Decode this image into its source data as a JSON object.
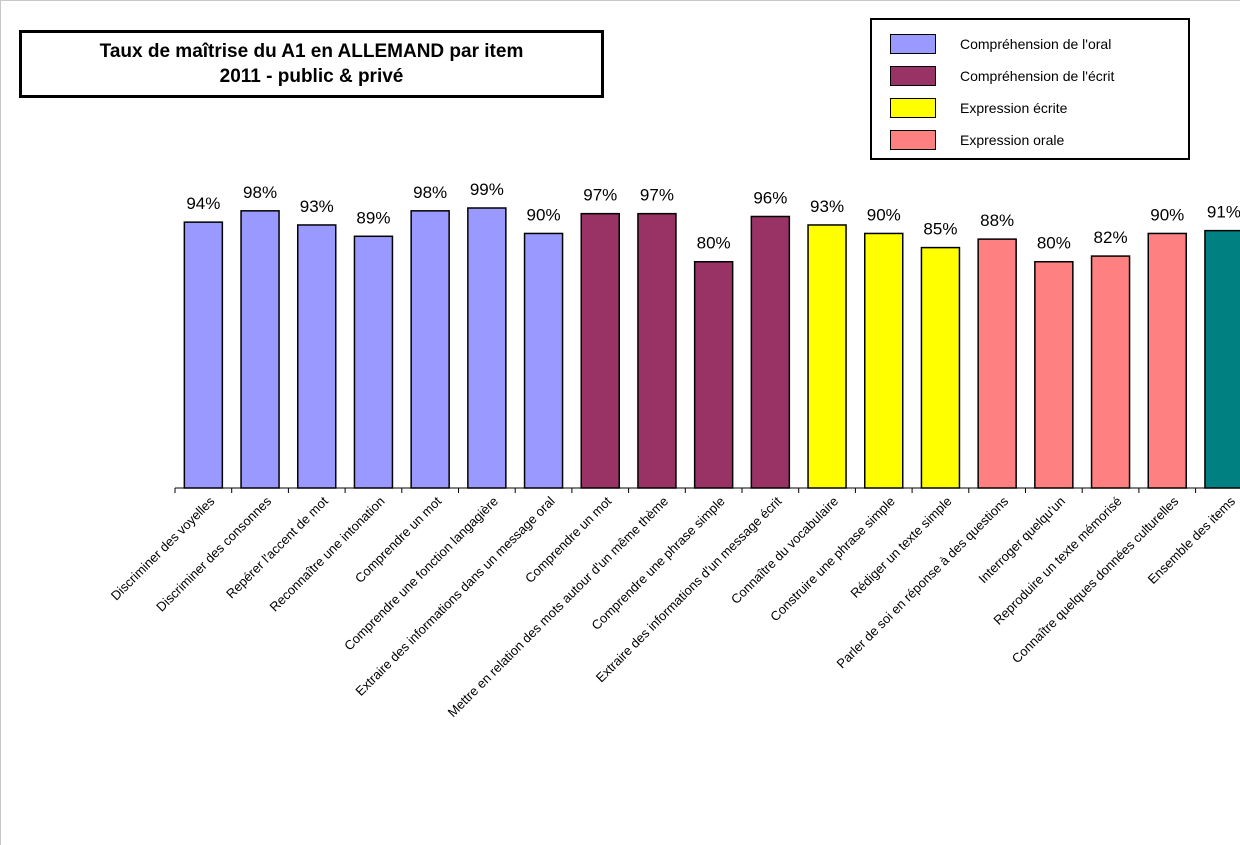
{
  "chart_data": {
    "type": "bar",
    "title_line1": "Taux de maîtrise du A1 en ALLEMAND par item",
    "title_line2": "2011 - public & privé",
    "xlabel": "",
    "ylabel": "",
    "ylim": [
      0,
      100
    ],
    "grid": false,
    "legend_placement": "top-right",
    "legend": [
      {
        "label": "Compréhension de l'oral",
        "color": "#9999ff"
      },
      {
        "label": "Compréhension de l'écrit",
        "color": "#993366"
      },
      {
        "label": "Expression écrite",
        "color": "#ffff00"
      },
      {
        "label": "Expression orale",
        "color": "#ff8080"
      }
    ],
    "categories": [
      "Discriminer des voyelles",
      "Discriminer des consonnes",
      "Repérer l'accent de mot",
      "Reconnaître une intonation",
      "Comprendre un mot",
      "Comprendre une fonction langagière",
      "Extraire des informations dans un message oral",
      "Comprendre un mot",
      "Mettre en relation  des mots autour d'un même thème",
      "Comprendre une phrase simple",
      "Extraire des informations d'un message écrit",
      "Connaître du vocabulaire",
      "Construire une phrase simple",
      "Rédiger un texte simple",
      "Parler de soi en réponse à des questions",
      "Interroger quelqu'un",
      "Reproduire un texte mémorisé",
      "Connaître quelques données culturelles",
      "Ensemble des items"
    ],
    "values": [
      94,
      98,
      93,
      89,
      98,
      99,
      90,
      97,
      97,
      80,
      96,
      93,
      90,
      85,
      88,
      80,
      82,
      90,
      91
    ],
    "value_labels": [
      "94%",
      "98%",
      "93%",
      "89%",
      "98%",
      "99%",
      "90%",
      "97%",
      "97%",
      "80%",
      "96%",
      "93%",
      "90%",
      "85%",
      "88%",
      "80%",
      "82%",
      "90%",
      "91%"
    ],
    "bar_colors": [
      "#9999ff",
      "#9999ff",
      "#9999ff",
      "#9999ff",
      "#9999ff",
      "#9999ff",
      "#9999ff",
      "#993366",
      "#993366",
      "#993366",
      "#993366",
      "#ffff00",
      "#ffff00",
      "#ffff00",
      "#ff8080",
      "#ff8080",
      "#ff8080",
      "#ff8080",
      "#008080"
    ]
  }
}
